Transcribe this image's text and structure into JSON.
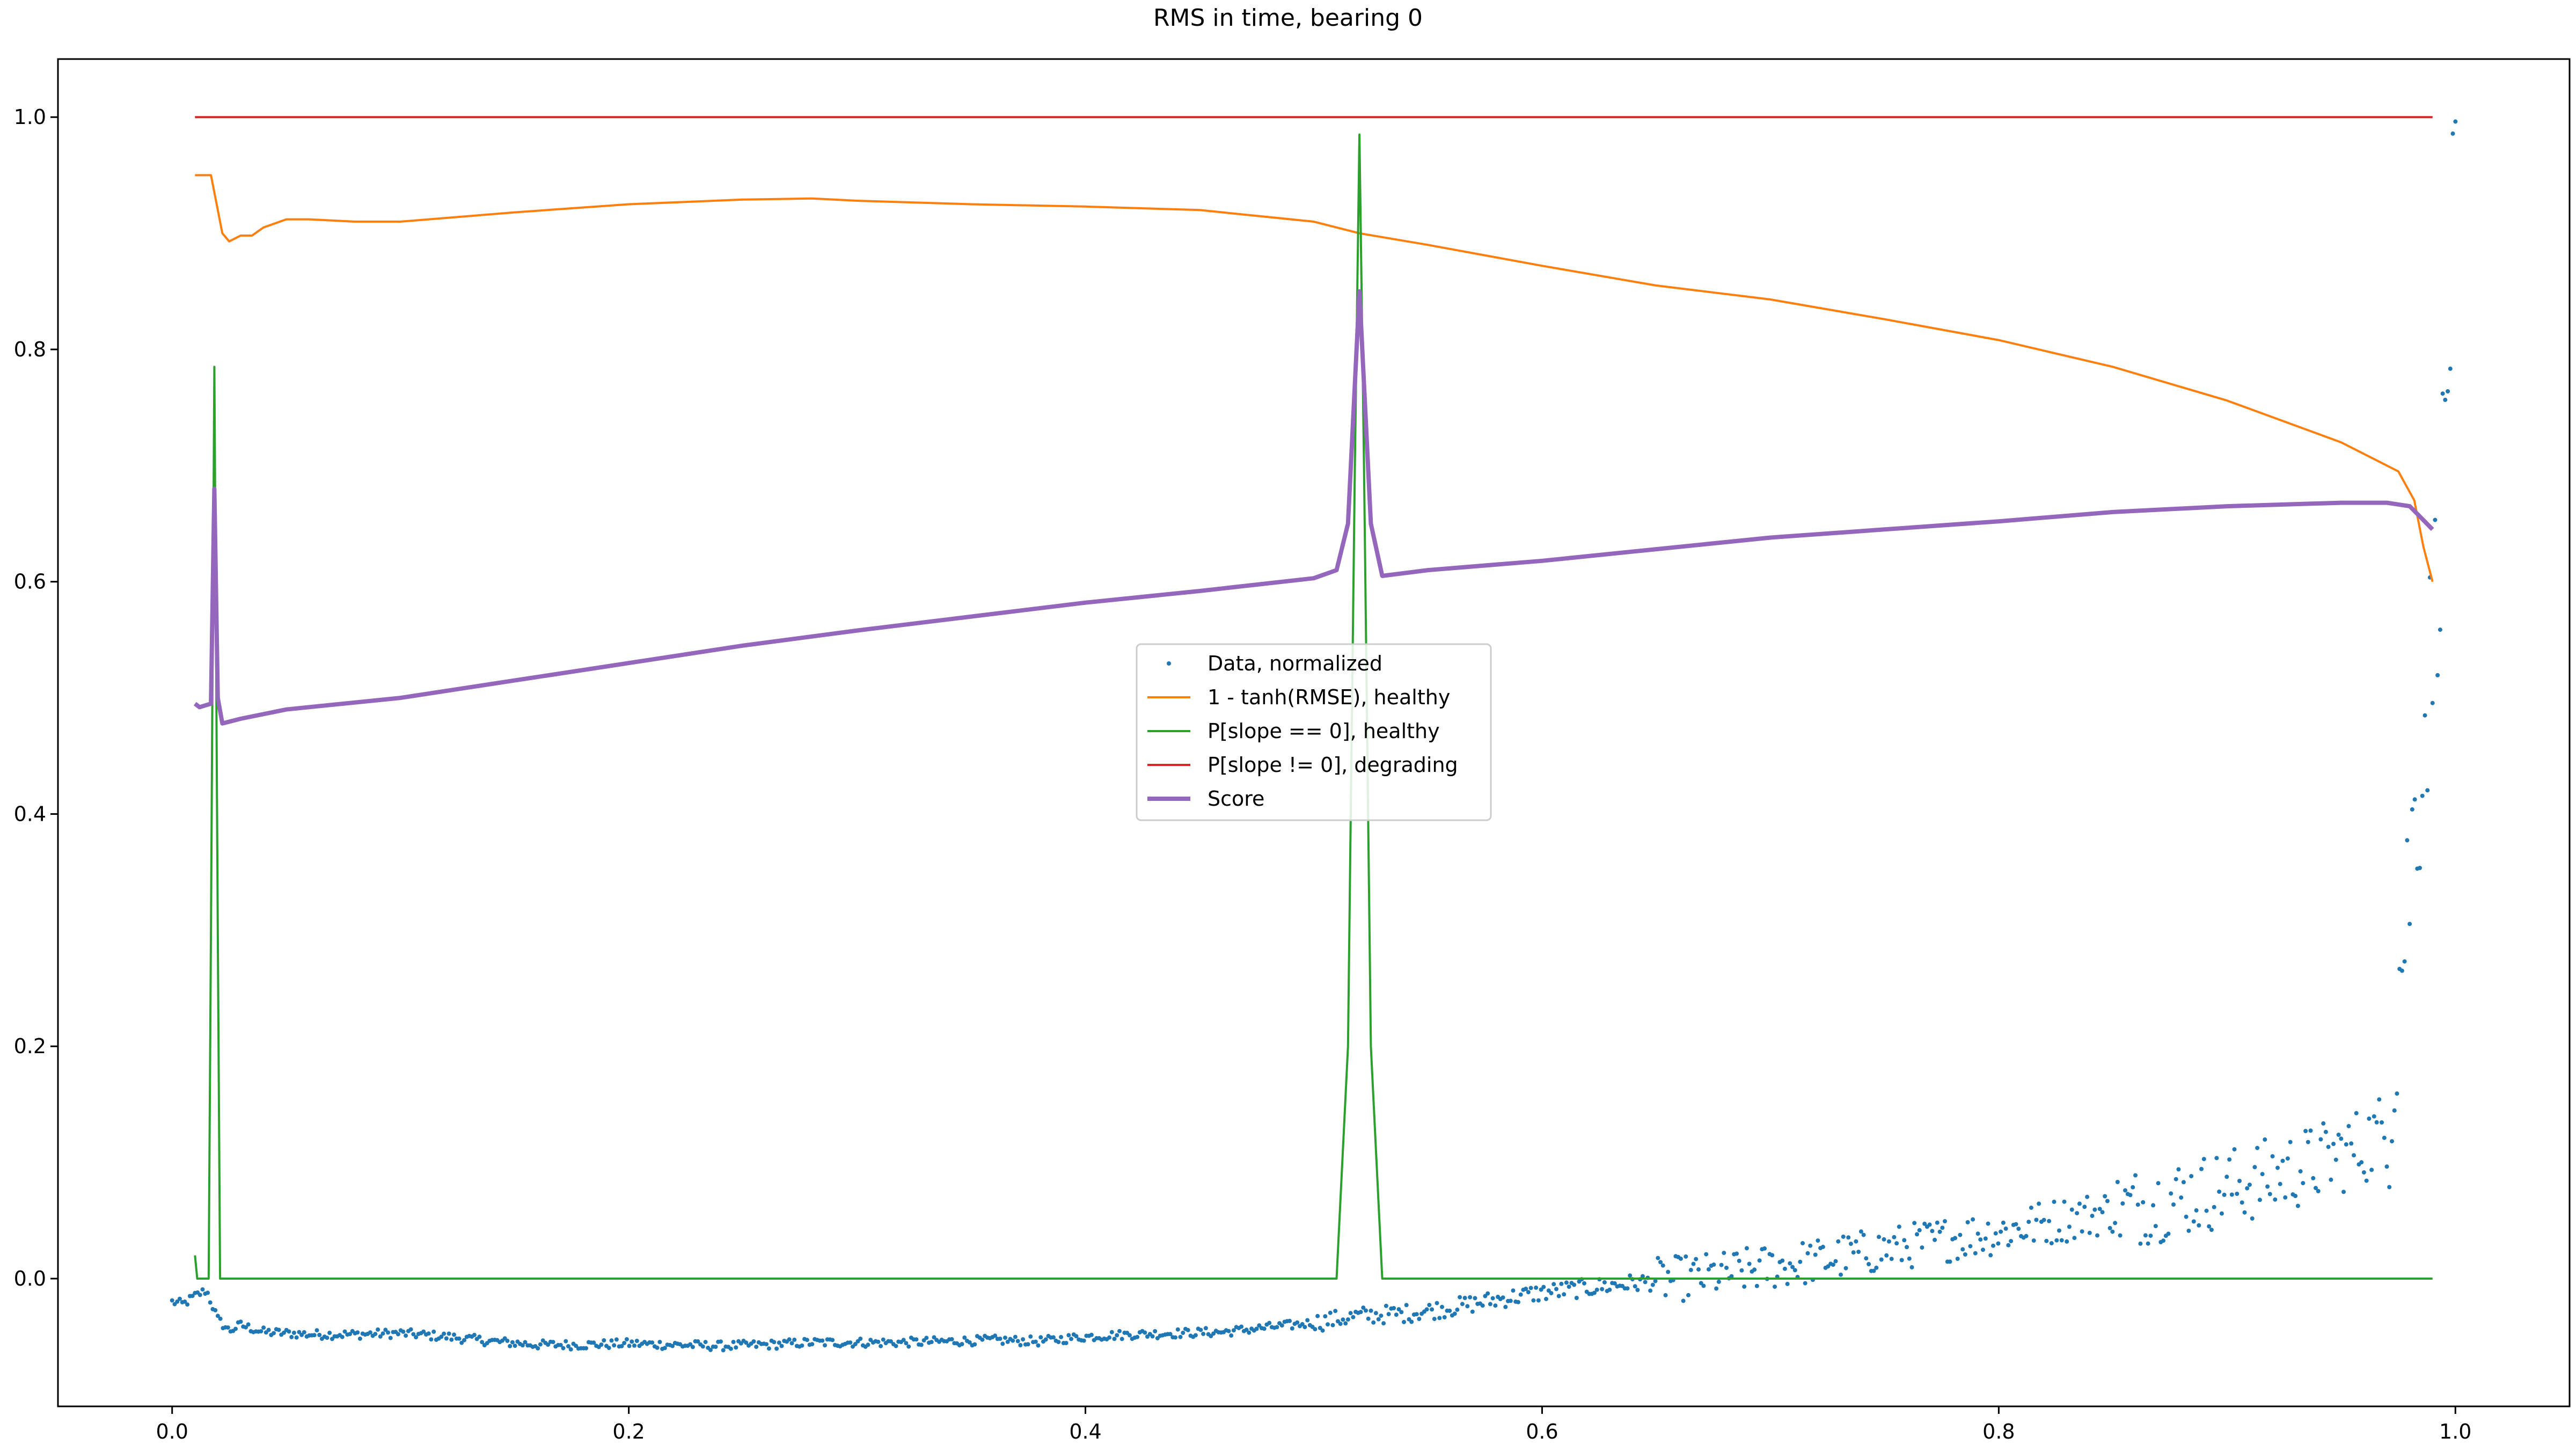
{
  "chart_data": {
    "type": "line",
    "title": "RMS in time, bearing 0",
    "xlabel": "",
    "ylabel": "",
    "xlim": [
      -0.05,
      1.05
    ],
    "ylim": [
      -0.11,
      1.05
    ],
    "x_ticks": [
      0.0,
      0.2,
      0.4,
      0.6,
      0.8,
      1.0
    ],
    "x_tick_labels": [
      "0.0",
      "0.2",
      "0.4",
      "0.6",
      "0.8",
      "1.0"
    ],
    "y_ticks": [
      0.0,
      0.2,
      0.4,
      0.6,
      0.8,
      1.0
    ],
    "y_tick_labels": [
      "0.0",
      "0.2",
      "0.4",
      "0.6",
      "0.8",
      "1.0"
    ],
    "grid": false,
    "legend_position": "center",
    "series": [
      {
        "name": "Data, normalized",
        "kind": "scatter",
        "color": "#1f77b4",
        "points": [
          [
            0.0,
            -0.02
          ],
          [
            0.005,
            -0.022
          ],
          [
            0.01,
            -0.015
          ],
          [
            0.015,
            -0.01
          ],
          [
            0.02,
            -0.035
          ],
          [
            0.025,
            -0.045
          ],
          [
            0.03,
            -0.04
          ],
          [
            0.04,
            -0.046
          ],
          [
            0.06,
            -0.048
          ],
          [
            0.08,
            -0.048
          ],
          [
            0.1,
            -0.047
          ],
          [
            0.12,
            -0.05
          ],
          [
            0.14,
            -0.054
          ],
          [
            0.16,
            -0.057
          ],
          [
            0.18,
            -0.057
          ],
          [
            0.2,
            -0.056
          ],
          [
            0.22,
            -0.057
          ],
          [
            0.24,
            -0.058
          ],
          [
            0.26,
            -0.057
          ],
          [
            0.28,
            -0.055
          ],
          [
            0.3,
            -0.055
          ],
          [
            0.32,
            -0.055
          ],
          [
            0.34,
            -0.054
          ],
          [
            0.36,
            -0.053
          ],
          [
            0.38,
            -0.054
          ],
          [
            0.4,
            -0.05
          ],
          [
            0.42,
            -0.048
          ],
          [
            0.44,
            -0.047
          ],
          [
            0.46,
            -0.046
          ],
          [
            0.48,
            -0.042
          ],
          [
            0.5,
            -0.038
          ],
          [
            0.52,
            -0.032
          ],
          [
            0.54,
            -0.03
          ],
          [
            0.56,
            -0.025
          ],
          [
            0.58,
            -0.018
          ],
          [
            0.6,
            -0.012
          ],
          [
            0.62,
            -0.008
          ],
          [
            0.64,
            -0.004
          ],
          [
            0.66,
            0.0
          ],
          [
            0.68,
            0.004
          ],
          [
            0.7,
            0.01
          ],
          [
            0.72,
            0.015
          ],
          [
            0.74,
            0.022
          ],
          [
            0.76,
            0.028
          ],
          [
            0.78,
            0.035
          ],
          [
            0.8,
            0.04
          ],
          [
            0.82,
            0.048
          ],
          [
            0.84,
            0.055
          ],
          [
            0.86,
            0.062
          ],
          [
            0.88,
            0.07
          ],
          [
            0.9,
            0.078
          ],
          [
            0.92,
            0.088
          ],
          [
            0.94,
            0.1
          ],
          [
            0.96,
            0.115
          ],
          [
            0.97,
            0.13
          ],
          [
            0.975,
            0.25
          ],
          [
            0.98,
            0.35
          ],
          [
            0.985,
            0.45
          ],
          [
            0.99,
            0.55
          ],
          [
            0.995,
            0.7
          ],
          [
            1.0,
            0.94
          ]
        ]
      },
      {
        "name": "1 - tanh(RMSE), healthy",
        "kind": "line",
        "color": "#ff7f0e",
        "points": [
          [
            0.01,
            0.95
          ],
          [
            0.017,
            0.95
          ],
          [
            0.022,
            0.9
          ],
          [
            0.025,
            0.893
          ],
          [
            0.03,
            0.898
          ],
          [
            0.035,
            0.898
          ],
          [
            0.04,
            0.905
          ],
          [
            0.05,
            0.912
          ],
          [
            0.06,
            0.912
          ],
          [
            0.08,
            0.91
          ],
          [
            0.1,
            0.91
          ],
          [
            0.15,
            0.918
          ],
          [
            0.2,
            0.925
          ],
          [
            0.25,
            0.929
          ],
          [
            0.28,
            0.93
          ],
          [
            0.3,
            0.928
          ],
          [
            0.35,
            0.925
          ],
          [
            0.4,
            0.923
          ],
          [
            0.45,
            0.92
          ],
          [
            0.5,
            0.91
          ],
          [
            0.52,
            0.9
          ],
          [
            0.55,
            0.89
          ],
          [
            0.6,
            0.872
          ],
          [
            0.65,
            0.855
          ],
          [
            0.7,
            0.843
          ],
          [
            0.75,
            0.826
          ],
          [
            0.8,
            0.808
          ],
          [
            0.85,
            0.785
          ],
          [
            0.9,
            0.756
          ],
          [
            0.95,
            0.72
          ],
          [
            0.975,
            0.695
          ],
          [
            0.982,
            0.67
          ],
          [
            0.986,
            0.63
          ],
          [
            0.99,
            0.6
          ]
        ]
      },
      {
        "name": "P[slope == 0], healthy",
        "kind": "line",
        "color": "#2ca02c",
        "points": [
          [
            0.01,
            0.02
          ],
          [
            0.011,
            0.0
          ],
          [
            0.016,
            0.0
          ],
          [
            0.017,
            0.3
          ],
          [
            0.0185,
            0.785
          ],
          [
            0.02,
            0.3
          ],
          [
            0.021,
            0.0
          ],
          [
            0.51,
            0.0
          ],
          [
            0.515,
            0.2
          ],
          [
            0.518,
            0.7
          ],
          [
            0.52,
            0.985
          ],
          [
            0.522,
            0.7
          ],
          [
            0.525,
            0.2
          ],
          [
            0.53,
            0.0
          ],
          [
            0.99,
            0.0
          ]
        ]
      },
      {
        "name": "P[slope != 0], degrading",
        "kind": "line",
        "color": "#d62728",
        "points": [
          [
            0.01,
            1.0
          ],
          [
            0.99,
            1.0
          ]
        ]
      },
      {
        "name": "Score",
        "kind": "line",
        "color": "#9467bd",
        "points": [
          [
            0.01,
            0.495
          ],
          [
            0.012,
            0.492
          ],
          [
            0.017,
            0.495
          ],
          [
            0.0185,
            0.68
          ],
          [
            0.02,
            0.5
          ],
          [
            0.022,
            0.478
          ],
          [
            0.03,
            0.482
          ],
          [
            0.05,
            0.49
          ],
          [
            0.1,
            0.5
          ],
          [
            0.15,
            0.515
          ],
          [
            0.2,
            0.53
          ],
          [
            0.25,
            0.545
          ],
          [
            0.3,
            0.558
          ],
          [
            0.35,
            0.57
          ],
          [
            0.4,
            0.582
          ],
          [
            0.45,
            0.592
          ],
          [
            0.5,
            0.603
          ],
          [
            0.51,
            0.61
          ],
          [
            0.515,
            0.65
          ],
          [
            0.52,
            0.85
          ],
          [
            0.525,
            0.65
          ],
          [
            0.53,
            0.605
          ],
          [
            0.55,
            0.61
          ],
          [
            0.6,
            0.618
          ],
          [
            0.65,
            0.628
          ],
          [
            0.7,
            0.638
          ],
          [
            0.75,
            0.645
          ],
          [
            0.8,
            0.652
          ],
          [
            0.85,
            0.66
          ],
          [
            0.9,
            0.665
          ],
          [
            0.95,
            0.668
          ],
          [
            0.97,
            0.668
          ],
          [
            0.98,
            0.665
          ],
          [
            0.99,
            0.645
          ]
        ]
      }
    ]
  }
}
